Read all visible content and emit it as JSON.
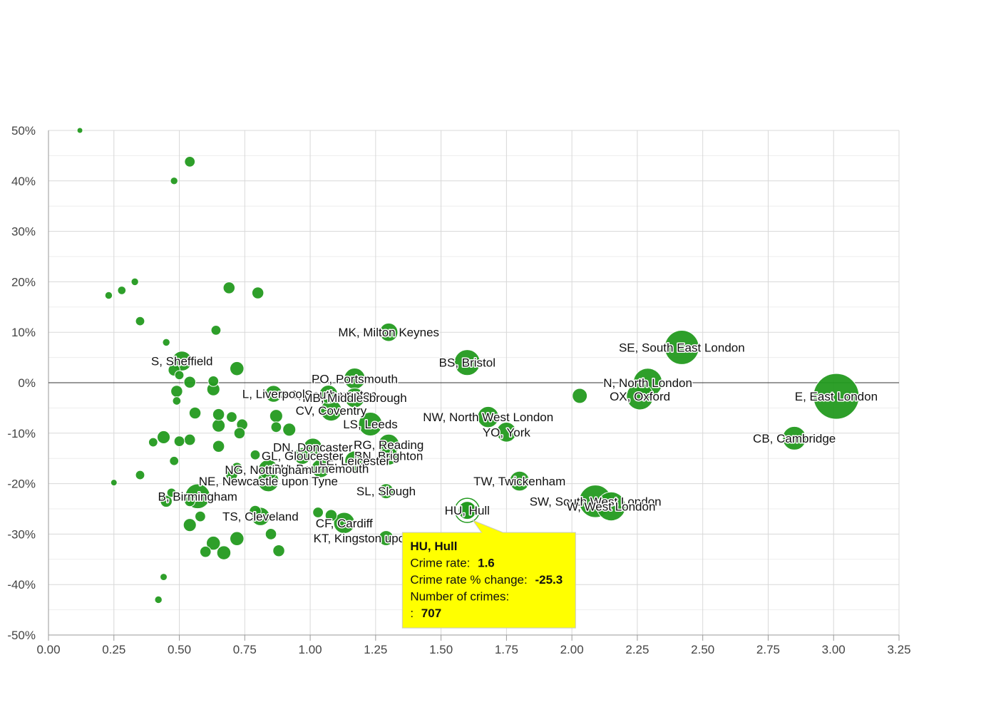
{
  "chart_data": {
    "type": "scatter",
    "title": "",
    "xlabel": "",
    "ylabel": "",
    "xlim": [
      0,
      3.25
    ],
    "ylim": [
      -50,
      50
    ],
    "x_ticks": [
      "0.00",
      "0.25",
      "0.50",
      "0.75",
      "1.00",
      "1.25",
      "1.50",
      "1.75",
      "2.00",
      "2.25",
      "2.50",
      "2.75",
      "3.00",
      "3.25"
    ],
    "y_ticks": [
      "50%",
      "40%",
      "30%",
      "20%",
      "10%",
      "0%",
      "-10%",
      "-20%",
      "-30%",
      "-40%",
      "-50%"
    ],
    "grid": true,
    "colors": {
      "bubble": "#239a1f",
      "tooltip_bg": "#ffff00",
      "grid": "#d8d8d8"
    },
    "series": [
      {
        "points": [
          {
            "label": "E, East London",
            "x": 3.01,
            "y": -2.7,
            "crimes": 75000
          },
          {
            "label": "SE, South East London",
            "x": 2.42,
            "y": 7.0,
            "crimes": 42000
          },
          {
            "label": "N, North London",
            "x": 2.29,
            "y": 0.0,
            "crimes": 30000
          },
          {
            "label": "OX, Oxford",
            "x": 2.26,
            "y": -2.7,
            "crimes": 26000
          },
          {
            "label": "CB, Cambridge",
            "x": 2.85,
            "y": -11.0,
            "crimes": 20000
          },
          {
            "label": "SW, South West London",
            "x": 2.09,
            "y": -23.5,
            "crimes": 38000
          },
          {
            "label": "W, West London",
            "x": 2.15,
            "y": -24.5,
            "crimes": 30000
          },
          {
            "label": "",
            "x": 2.03,
            "y": -2.6,
            "crimes": 8000
          },
          {
            "label": "TW, Twickenham",
            "x": 1.8,
            "y": -19.5,
            "crimes": 14000
          },
          {
            "label": "YO, York",
            "x": 1.75,
            "y": -9.8,
            "crimes": 14000
          },
          {
            "label": "NW, North West London",
            "x": 1.68,
            "y": -6.8,
            "crimes": 16000
          },
          {
            "label": "BS, Bristol",
            "x": 1.6,
            "y": 4.0,
            "crimes": 24000
          },
          {
            "label": "HU, Hull",
            "x": 1.6,
            "y": -25.3,
            "crimes": 707
          },
          {
            "label": "MK, Milton Keynes",
            "x": 1.3,
            "y": 10.0,
            "crimes": 12000
          },
          {
            "label": "PO, Portsmouth",
            "x": 1.17,
            "y": 0.8,
            "crimes": 16000
          },
          {
            "label": "SL, Slough",
            "x": 1.29,
            "y": -21.5,
            "crimes": 8000
          },
          {
            "label": "KT, Kingston upon Thames",
            "x": 1.29,
            "y": -30.8,
            "crimes": 8000
          },
          {
            "label": "LS, Leeds",
            "x": 1.23,
            "y": -8.2,
            "crimes": 20000
          },
          {
            "label": "RG, Reading",
            "x": 1.3,
            "y": -12.3,
            "crimes": 16000
          },
          {
            "label": "BN, Brighton",
            "x": 1.3,
            "y": -14.5,
            "crimes": 12000
          },
          {
            "label": "SO, Southampton",
            "x": 1.07,
            "y": -2.3,
            "crimes": 12000
          },
          {
            "label": "MB, Middlesbrough",
            "x": 1.17,
            "y": -3.0,
            "crimes": 14000
          },
          {
            "label": "CV, Coventry",
            "x": 1.08,
            "y": -5.5,
            "crimes": 16000
          },
          {
            "label": "LE, Leicester",
            "x": 1.17,
            "y": -15.5,
            "crimes": 14000
          },
          {
            "label": "CF, Cardiff",
            "x": 1.13,
            "y": -27.8,
            "crimes": 16000
          },
          {
            "label": "BH, Bournemouth",
            "x": 1.04,
            "y": -17.0,
            "crimes": 12000
          },
          {
            "label": "DN, Doncaster",
            "x": 1.01,
            "y": -12.8,
            "crimes": 12000
          },
          {
            "label": "GL, Gloucester",
            "x": 0.97,
            "y": -14.5,
            "crimes": 10000
          },
          {
            "label": "L, Liverpool",
            "x": 0.86,
            "y": -2.2,
            "crimes": 10000
          },
          {
            "label": "NG, Nottingham",
            "x": 0.84,
            "y": -17.2,
            "crimes": 14000
          },
          {
            "label": "NE, Newcastle upon Tyne",
            "x": 0.84,
            "y": -19.5,
            "crimes": 16000
          },
          {
            "label": "TS, Cleveland",
            "x": 0.81,
            "y": -26.5,
            "crimes": 12000
          },
          {
            "label": "S, Sheffield",
            "x": 0.51,
            "y": 4.3,
            "crimes": 14000
          },
          {
            "label": "B, Birmingham",
            "x": 0.57,
            "y": -22.5,
            "crimes": 22000
          },
          {
            "label": "",
            "x": 0.12,
            "y": 50.0,
            "crimes": 600
          },
          {
            "label": "",
            "x": 0.54,
            "y": 43.8,
            "crimes": 4000
          },
          {
            "label": "",
            "x": 0.48,
            "y": 40.0,
            "crimes": 2000
          },
          {
            "label": "",
            "x": 0.23,
            "y": 17.3,
            "crimes": 2000
          },
          {
            "label": "",
            "x": 0.28,
            "y": 18.3,
            "crimes": 2500
          },
          {
            "label": "",
            "x": 0.33,
            "y": 20.0,
            "crimes": 2000
          },
          {
            "label": "",
            "x": 0.69,
            "y": 18.8,
            "crimes": 5000
          },
          {
            "label": "",
            "x": 0.8,
            "y": 17.8,
            "crimes": 5000
          },
          {
            "label": "",
            "x": 0.35,
            "y": 12.2,
            "crimes": 3000
          },
          {
            "label": "",
            "x": 0.64,
            "y": 10.4,
            "crimes": 3500
          },
          {
            "label": "",
            "x": 0.45,
            "y": 8.0,
            "crimes": 2000
          },
          {
            "label": "",
            "x": 0.72,
            "y": 2.8,
            "crimes": 7000
          },
          {
            "label": "",
            "x": 0.48,
            "y": 2.5,
            "crimes": 5000
          },
          {
            "label": "",
            "x": 0.5,
            "y": 1.5,
            "crimes": 3000
          },
          {
            "label": "",
            "x": 0.54,
            "y": 0.1,
            "crimes": 5000
          },
          {
            "label": "",
            "x": 0.63,
            "y": 0.3,
            "crimes": 4000
          },
          {
            "label": "",
            "x": 0.63,
            "y": -1.3,
            "crimes": 6000
          },
          {
            "label": "",
            "x": 0.49,
            "y": -1.7,
            "crimes": 5000
          },
          {
            "label": "",
            "x": 0.49,
            "y": -3.6,
            "crimes": 2500
          },
          {
            "label": "",
            "x": 0.56,
            "y": -6.0,
            "crimes": 5000
          },
          {
            "label": "",
            "x": 0.65,
            "y": -6.3,
            "crimes": 5000
          },
          {
            "label": "",
            "x": 0.7,
            "y": -6.8,
            "crimes": 4000
          },
          {
            "label": "",
            "x": 0.74,
            "y": -8.3,
            "crimes": 4500
          },
          {
            "label": "",
            "x": 0.65,
            "y": -8.5,
            "crimes": 6000
          },
          {
            "label": "",
            "x": 0.73,
            "y": -10.0,
            "crimes": 4500
          },
          {
            "label": "",
            "x": 0.44,
            "y": -10.8,
            "crimes": 6000
          },
          {
            "label": "",
            "x": 0.54,
            "y": -11.3,
            "crimes": 4500
          },
          {
            "label": "",
            "x": 0.5,
            "y": -11.6,
            "crimes": 4000
          },
          {
            "label": "",
            "x": 0.4,
            "y": -11.8,
            "crimes": 3000
          },
          {
            "label": "",
            "x": 0.65,
            "y": -12.6,
            "crimes": 5000
          },
          {
            "label": "",
            "x": 0.87,
            "y": -6.6,
            "crimes": 6000
          },
          {
            "label": "",
            "x": 0.87,
            "y": -8.8,
            "crimes": 4000
          },
          {
            "label": "",
            "x": 0.92,
            "y": -9.3,
            "crimes": 6000
          },
          {
            "label": "",
            "x": 0.79,
            "y": -14.3,
            "crimes": 3500
          },
          {
            "label": "",
            "x": 0.48,
            "y": -15.5,
            "crimes": 3000
          },
          {
            "label": "",
            "x": 0.72,
            "y": -16.9,
            "crimes": 4500
          },
          {
            "label": "",
            "x": 0.7,
            "y": -18.2,
            "crimes": 5000
          },
          {
            "label": "",
            "x": 0.35,
            "y": -18.3,
            "crimes": 3000
          },
          {
            "label": "",
            "x": 0.25,
            "y": -19.8,
            "crimes": 1500
          },
          {
            "label": "",
            "x": 0.47,
            "y": -21.8,
            "crimes": 3000
          },
          {
            "label": "",
            "x": 0.54,
            "y": -23.5,
            "crimes": 4000
          },
          {
            "label": "",
            "x": 0.45,
            "y": -23.5,
            "crimes": 5000
          },
          {
            "label": "",
            "x": 0.79,
            "y": -25.5,
            "crimes": 5000
          },
          {
            "label": "",
            "x": 0.58,
            "y": -26.5,
            "crimes": 4000
          },
          {
            "label": "",
            "x": 1.03,
            "y": -25.7,
            "crimes": 4000
          },
          {
            "label": "",
            "x": 1.08,
            "y": -26.3,
            "crimes": 5000
          },
          {
            "label": "",
            "x": 0.54,
            "y": -28.2,
            "crimes": 6000
          },
          {
            "label": "",
            "x": 0.85,
            "y": -30.0,
            "crimes": 4500
          },
          {
            "label": "",
            "x": 0.72,
            "y": -30.9,
            "crimes": 7000
          },
          {
            "label": "",
            "x": 0.63,
            "y": -31.8,
            "crimes": 7000
          },
          {
            "label": "",
            "x": 0.6,
            "y": -33.5,
            "crimes": 4500
          },
          {
            "label": "",
            "x": 0.67,
            "y": -33.7,
            "crimes": 7000
          },
          {
            "label": "",
            "x": 0.88,
            "y": -33.3,
            "crimes": 5000
          },
          {
            "label": "",
            "x": 0.44,
            "y": -38.5,
            "crimes": 1800
          },
          {
            "label": "",
            "x": 0.42,
            "y": -43.0,
            "crimes": 2000
          }
        ]
      }
    ],
    "tooltip": {
      "title": "HU, Hull",
      "rate_label": "Crime rate:",
      "rate_value": "1.6",
      "change_label": "Crime rate % change:",
      "change_value": "-25.3",
      "crimes_label": "Number of crimes:",
      "crimes_prefix": ":",
      "crimes_value": "707"
    }
  }
}
